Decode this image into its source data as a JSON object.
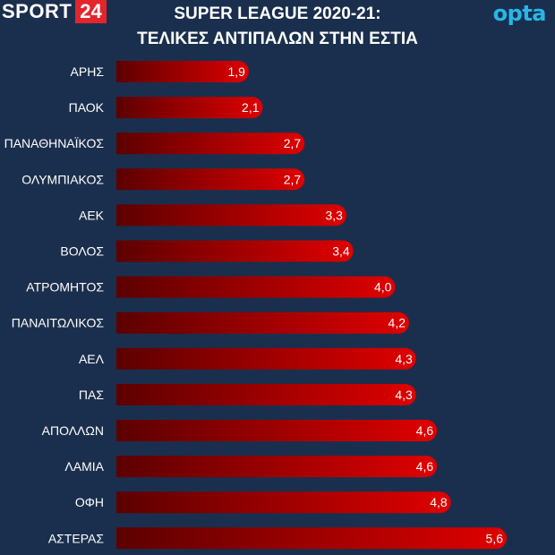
{
  "brand": {
    "sport_word": "SPORT",
    "sport_number": "24",
    "opta": "opta"
  },
  "colors": {
    "background": "#1a2f4d",
    "bar_dark": "#5c0000",
    "bar_light": "#e00000",
    "accent": "#e3262c",
    "opta": "#28b6e8"
  },
  "chart_data": {
    "type": "bar",
    "orientation": "horizontal",
    "title": "SUPER LEAGUE 2020-21:",
    "subtitle": "ΤΕΛΙΚΕΣ ΑΝΤΙΠΑΛΩΝ ΣΤΗΝ ΕΣΤΙΑ",
    "categories": [
      "ΑΡΗΣ",
      "ΠΑΟΚ",
      "ΠΑΝΑΘΗΝΑΪΚΟΣ",
      "ΟΛΥΜΠΙΑΚΟΣ",
      "ΑΕΚ",
      "ΒΟΛΟΣ",
      "ΑΤΡΟΜΗΤΟΣ",
      "ΠΑΝΑΙΤΩΛΙΚΟΣ",
      "ΑΕΛ",
      "ΠΑΣ",
      "ΑΠΟΛΛΩΝ",
      "ΛΑΜΙΑ",
      "ΟΦΗ",
      "ΑΣΤΕΡΑΣ"
    ],
    "values": [
      1.9,
      2.1,
      2.7,
      2.7,
      3.3,
      3.4,
      4.0,
      4.2,
      4.3,
      4.3,
      4.6,
      4.6,
      4.8,
      5.6
    ],
    "value_labels": [
      "1,9",
      "2,1",
      "2,7",
      "2,7",
      "3,3",
      "3,4",
      "4,0",
      "4,2",
      "4,3",
      "4,3",
      "4,6",
      "4,6",
      "4,8",
      "5,6"
    ],
    "xlim": [
      0,
      5.6
    ],
    "xlabel": "",
    "ylabel": "",
    "grid": false,
    "legend": "none"
  }
}
